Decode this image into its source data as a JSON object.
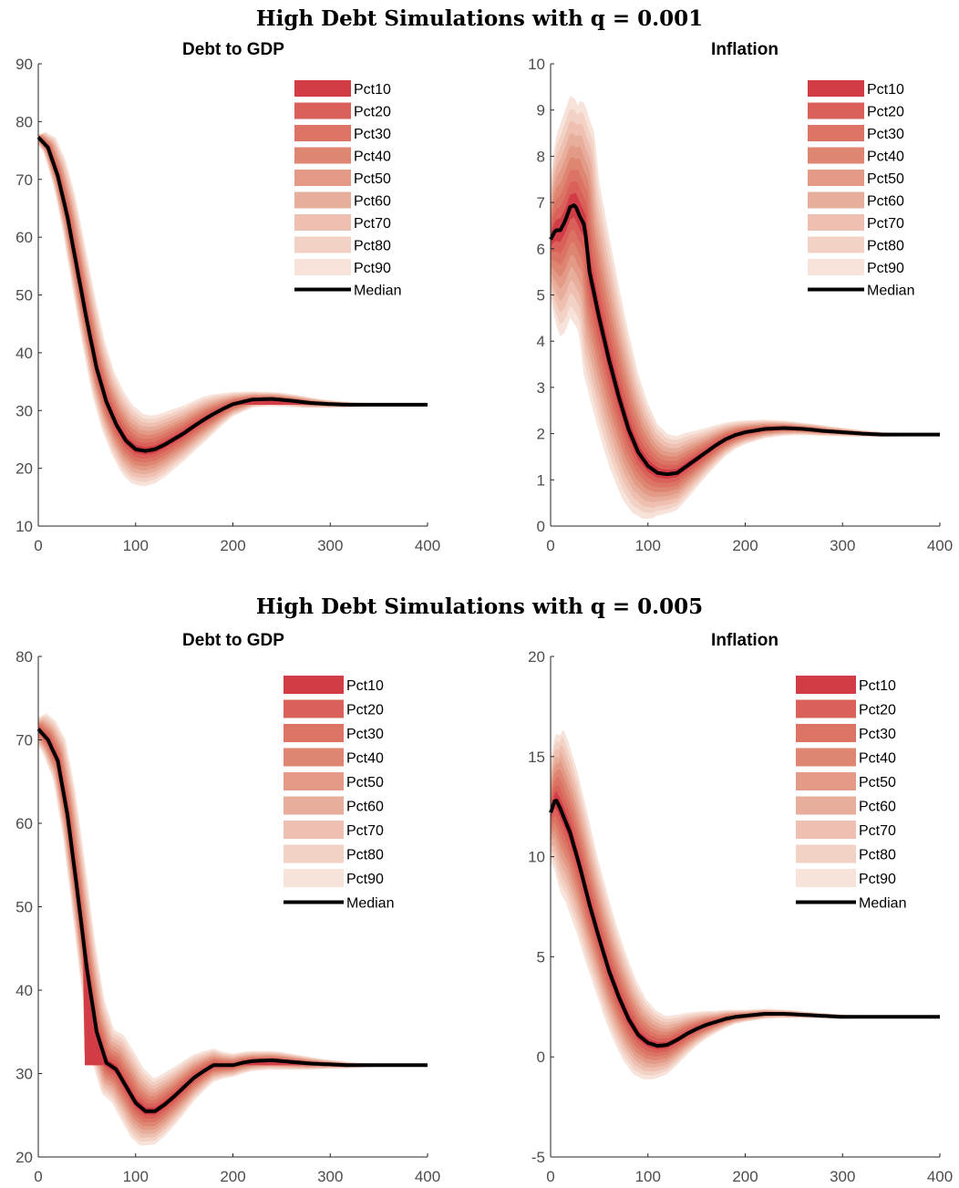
{
  "figure": {
    "panel_titles": [
      "Debt to GDP",
      "Inflation"
    ],
    "legend_labels": [
      "Pct10",
      "Pct20",
      "Pct30",
      "Pct40",
      "Pct50",
      "Pct60",
      "Pct70",
      "Pct80",
      "Pct90",
      "Median"
    ],
    "band_colors": [
      "#d23c46",
      "#d9615a",
      "#dc7465",
      "#df8673",
      "#e39a86",
      "#e8ae9c",
      "#efc0b2",
      "#f3d2c6",
      "#f8e3db"
    ],
    "median_color": "#000000"
  },
  "groups": [
    {
      "title": "High Debt Simulations with q = 0.001"
    },
    {
      "title": "High Debt Simulations with q = 0.005"
    }
  ],
  "chart_data": [
    {
      "type": "area",
      "title": "Debt to GDP",
      "group": "High Debt Simulations with q = 0.001",
      "xlim": [
        0,
        400
      ],
      "ylim": [
        10,
        90
      ],
      "xticks": [
        0,
        100,
        200,
        300,
        400
      ],
      "yticks": [
        10,
        20,
        30,
        40,
        50,
        60,
        70,
        80,
        90
      ],
      "x": [
        0,
        10,
        20,
        30,
        40,
        50,
        60,
        70,
        80,
        90,
        100,
        110,
        120,
        130,
        140,
        150,
        160,
        170,
        180,
        190,
        200,
        220,
        240,
        260,
        280,
        300,
        320,
        340,
        360,
        380,
        400
      ],
      "median": [
        77.3,
        75.5,
        70.6,
        63.5,
        54.5,
        45.5,
        37.3,
        31.5,
        27.6,
        24.8,
        23.3,
        23.0,
        23.3,
        24.1,
        25.1,
        26.1,
        27.3,
        28.4,
        29.4,
        30.3,
        31.1,
        31.9,
        32.0,
        31.7,
        31.3,
        31.1,
        31.0,
        31.0,
        31.0,
        31.0,
        31.0
      ],
      "band_half_width": [
        0.5,
        1.0,
        1.9,
        3.0,
        3.8,
        4.2,
        4.6,
        4.9,
        5.3,
        5.7,
        6.0,
        6.1,
        5.9,
        5.6,
        5.2,
        4.8,
        4.4,
        4.0,
        3.4,
        2.7,
        2.1,
        1.4,
        1.2,
        1.0,
        0.8,
        0.6,
        0.45,
        0.3,
        0.2,
        0.12,
        0.05
      ],
      "band_lag": 8,
      "band_floor": 31,
      "floor_from_x": 75
    },
    {
      "type": "area",
      "title": "Inflation",
      "group": "High Debt Simulations with q = 0.001",
      "xlim": [
        0,
        400
      ],
      "ylim": [
        0,
        10
      ],
      "xticks": [
        0,
        100,
        200,
        300,
        400
      ],
      "yticks": [
        0,
        1,
        2,
        3,
        4,
        5,
        6,
        7,
        8,
        9,
        10
      ],
      "x": [
        0,
        5,
        10,
        15,
        20,
        25,
        30,
        35,
        40,
        50,
        60,
        70,
        80,
        90,
        100,
        110,
        120,
        130,
        140,
        150,
        160,
        170,
        180,
        190,
        200,
        220,
        240,
        260,
        280,
        300,
        320,
        340,
        360,
        380,
        400
      ],
      "median": [
        6.2,
        6.4,
        6.4,
        6.6,
        6.9,
        6.95,
        6.7,
        6.5,
        5.5,
        4.5,
        3.6,
        2.8,
        2.1,
        1.6,
        1.3,
        1.15,
        1.12,
        1.15,
        1.3,
        1.45,
        1.6,
        1.75,
        1.88,
        1.97,
        2.03,
        2.1,
        2.12,
        2.1,
        2.06,
        2.03,
        2.0,
        1.98,
        1.98,
        1.98,
        1.98
      ],
      "band_half_width": [
        1.3,
        2.0,
        2.3,
        2.4,
        2.4,
        2.3,
        2.3,
        2.2,
        2.1,
        1.95,
        1.8,
        1.6,
        1.4,
        1.2,
        1.05,
        0.9,
        0.85,
        0.8,
        0.72,
        0.62,
        0.52,
        0.44,
        0.36,
        0.3,
        0.26,
        0.2,
        0.16,
        0.12,
        0.1,
        0.08,
        0.06,
        0.05,
        0.04,
        0.03,
        0.02
      ],
      "band_lag": 10
    },
    {
      "type": "area",
      "title": "Debt to GDP",
      "group": "High Debt Simulations with q = 0.005",
      "xlim": [
        0,
        400
      ],
      "ylim": [
        20,
        80
      ],
      "xticks": [
        0,
        100,
        200,
        300,
        400
      ],
      "yticks": [
        20,
        30,
        40,
        50,
        60,
        70,
        80
      ],
      "x": [
        0,
        10,
        20,
        30,
        40,
        50,
        60,
        70,
        80,
        90,
        100,
        110,
        120,
        130,
        140,
        150,
        160,
        170,
        180,
        190,
        200,
        210,
        220,
        240,
        260,
        280,
        300,
        320,
        340,
        360,
        380,
        400
      ],
      "median": [
        71.3,
        70.0,
        67.5,
        61.0,
        52.0,
        42.5,
        35.0,
        31.3,
        30.5,
        28.5,
        26.5,
        25.5,
        25.5,
        26.3,
        27.3,
        28.4,
        29.5,
        30.3,
        31.0,
        31.0,
        31.0,
        31.3,
        31.5,
        31.6,
        31.4,
        31.2,
        31.1,
        31.0,
        31.0,
        31.0,
        31.0,
        31.0
      ],
      "band_half_width": [
        1.4,
        2.0,
        2.3,
        2.6,
        3.0,
        3.4,
        3.6,
        3.8,
        4.0,
        4.1,
        4.2,
        4.1,
        4.0,
        3.8,
        3.5,
        3.2,
        2.8,
        2.4,
        2.0,
        1.6,
        1.4,
        1.3,
        1.2,
        1.1,
        0.9,
        0.7,
        0.5,
        0.35,
        0.25,
        0.15,
        0.1,
        0.05
      ],
      "band_lag": 8,
      "band_floor": 31,
      "floor_from_x": 48
    },
    {
      "type": "area",
      "title": "Inflation",
      "group": "High Debt Simulations with q = 0.005",
      "xlim": [
        0,
        400
      ],
      "ylim": [
        -5,
        20
      ],
      "xticks": [
        0,
        100,
        200,
        300,
        400
      ],
      "yticks": [
        -5,
        0,
        5,
        10,
        15,
        20
      ],
      "x": [
        0,
        5,
        10,
        20,
        30,
        40,
        50,
        60,
        70,
        80,
        90,
        100,
        110,
        120,
        130,
        140,
        150,
        160,
        170,
        180,
        190,
        200,
        220,
        240,
        260,
        280,
        300,
        320,
        340,
        360,
        380,
        400
      ],
      "median": [
        12.2,
        12.9,
        12.4,
        11.2,
        9.5,
        7.6,
        5.9,
        4.3,
        3.0,
        1.9,
        1.1,
        0.7,
        0.55,
        0.6,
        0.85,
        1.15,
        1.4,
        1.6,
        1.75,
        1.9,
        2.0,
        2.05,
        2.15,
        2.15,
        2.1,
        2.05,
        2.0,
        2.0,
        2.0,
        2.0,
        2.0,
        2.0
      ],
      "band_half_width": [
        2.6,
        3.3,
        3.6,
        3.3,
        2.9,
        2.6,
        2.4,
        2.3,
        2.2,
        2.05,
        1.9,
        1.75,
        1.6,
        1.45,
        1.25,
        1.05,
        0.85,
        0.7,
        0.55,
        0.45,
        0.35,
        0.3,
        0.25,
        0.2,
        0.15,
        0.12,
        0.1,
        0.08,
        0.06,
        0.05,
        0.04,
        0.03
      ],
      "band_lag": 8
    }
  ]
}
